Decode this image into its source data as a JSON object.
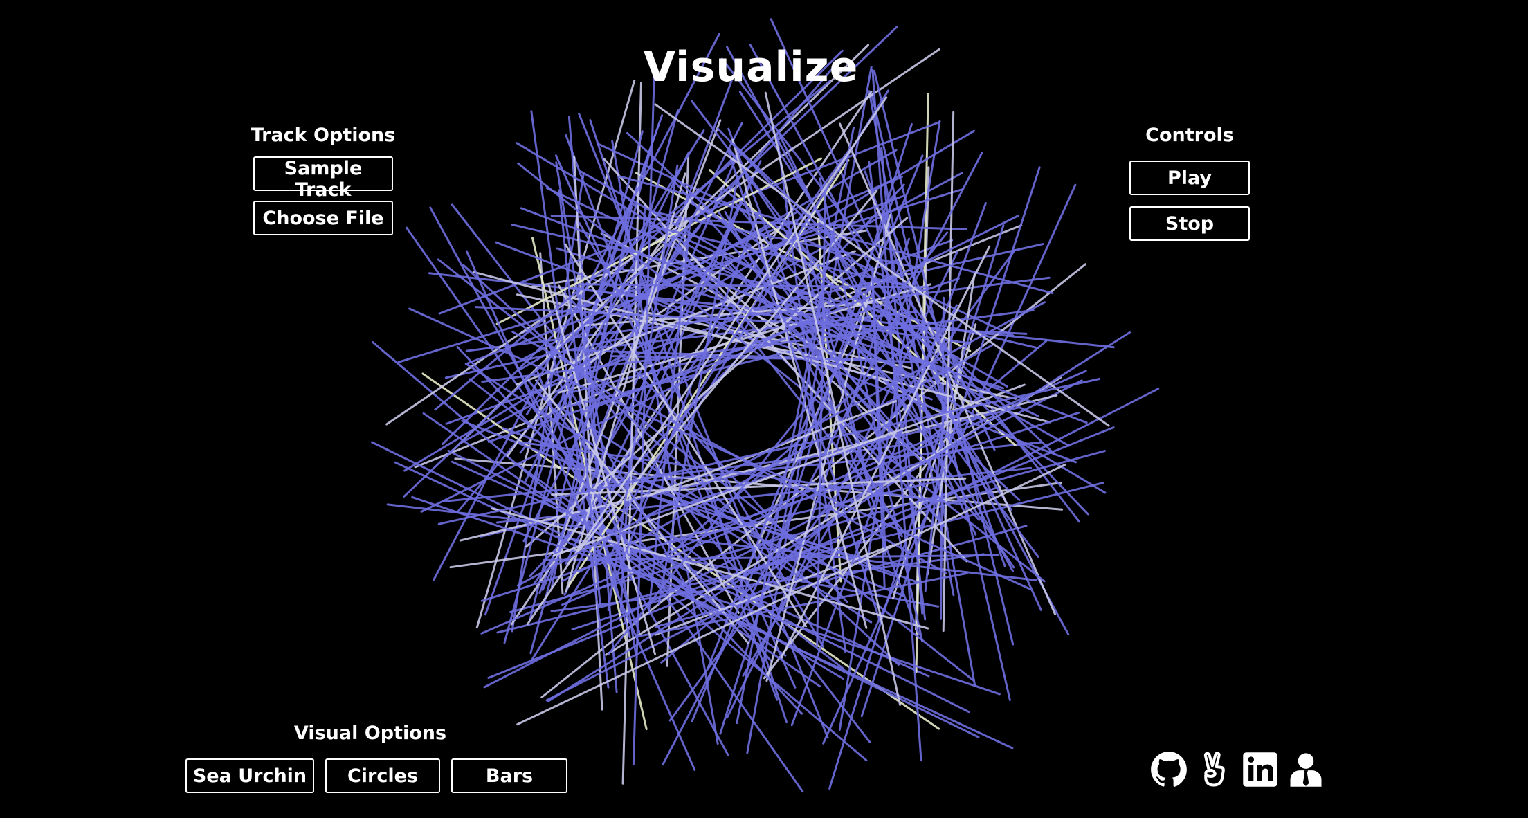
{
  "app": {
    "title": "Visualize"
  },
  "track_options": {
    "heading": "Track Options",
    "sample_track_label": "Sample Track",
    "choose_file_label": "Choose File"
  },
  "controls": {
    "heading": "Controls",
    "play_label": "Play",
    "stop_label": "Stop"
  },
  "visual_options": {
    "heading": "Visual Options",
    "sea_urchin_label": "Sea Urchin",
    "circles_label": "Circles",
    "bars_label": "Bars"
  },
  "social_links": [
    {
      "name": "github-icon"
    },
    {
      "name": "angellist-icon"
    },
    {
      "name": "linkedin-icon"
    },
    {
      "name": "portfolio-icon"
    }
  ],
  "colors": {
    "background": "#000000",
    "text": "#ffffff",
    "line_primary": "#6e6ee0",
    "line_secondary": "#c8c8e8",
    "line_highlight": "#e8ecc8"
  }
}
